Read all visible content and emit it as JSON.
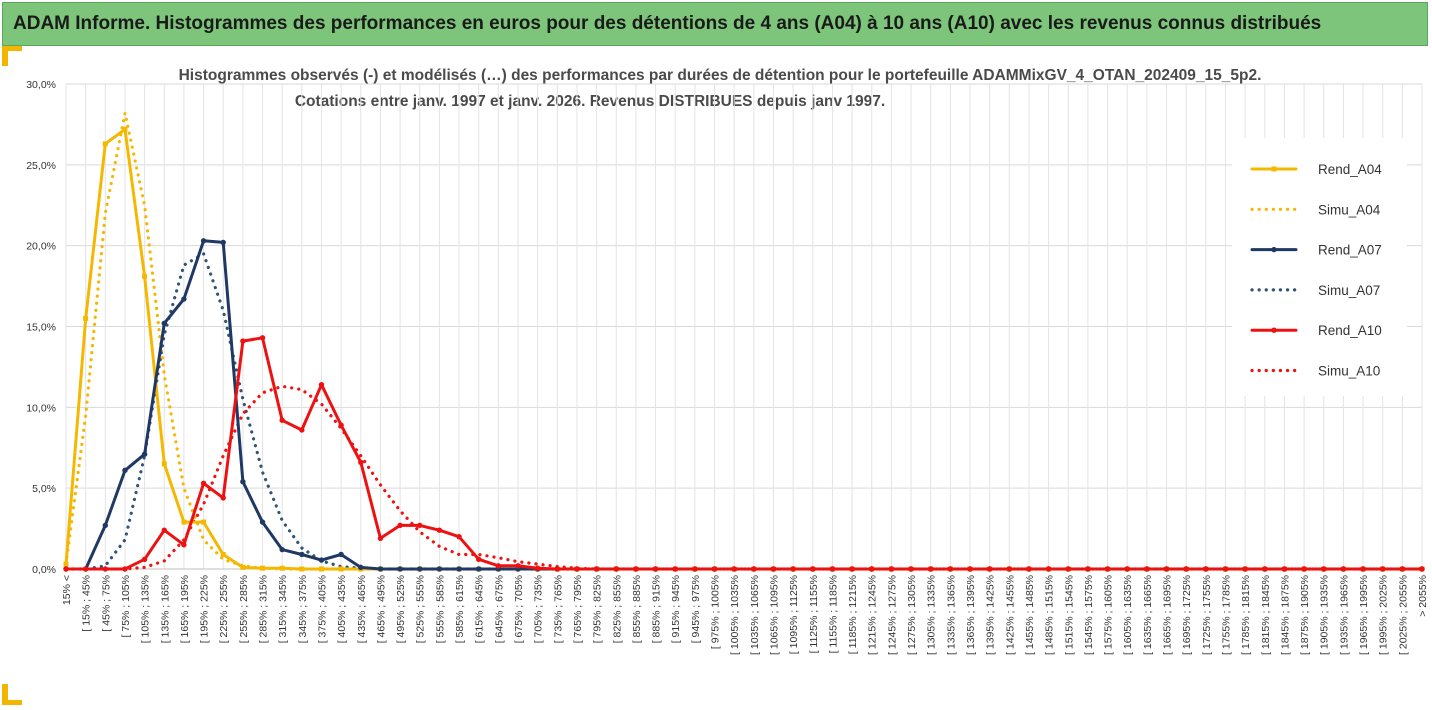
{
  "banner": {
    "title": "ADAM Informe. Histogrammes des performances en euros pour des détentions de 4 ans (A04) à 10 ans (A10) avec les revenus connus distribués"
  },
  "colors": {
    "banner_bg": "#7dc57a",
    "accent": "#f2b600",
    "A04": "#f5b800",
    "A07": "#1f3864",
    "A07_simu": "#2e5478",
    "A10": "#ee1111"
  },
  "chart_data": {
    "type": "line",
    "title_line1": "Histogrammes observés (-) et modélisés (…) des performances par durées de détention pour le portefeuille ADAMMixGV_4_OTAN_202409_15_5p2.",
    "title_line2": "Cotations entre janv. 1997 et janv. 2026. Revenus DISTRIBUES depuis janv 1997.",
    "y_ticks": [
      "0,0%",
      "5,0%",
      "10,0%",
      "15,0%",
      "20,0%",
      "25,0%",
      "30,0%"
    ],
    "ylim": [
      0,
      30
    ],
    "grid": true,
    "legend_position": "right",
    "categories": [
      "15% <",
      "[ 15% ; 45%",
      "[ 45% ; 75%",
      "[ 75% ; 105%",
      "[ 105% ; 135%",
      "[ 135% ; 165%",
      "[ 165% ; 195%",
      "[ 195% ; 225%",
      "[ 225% ; 255%",
      "[ 255% ; 285%",
      "[ 285% ; 315%",
      "[ 315% ; 345%",
      "[ 345% ; 375%",
      "[ 375% ; 405%",
      "[ 405% ; 435%",
      "[ 435% ; 465%",
      "[ 465% ; 495%",
      "[ 495% ; 525%",
      "[ 525% ; 555%",
      "[ 555% ; 585%",
      "[ 585% ; 615%",
      "[ 615% ; 645%",
      "[ 645% ; 675%",
      "[ 675% ; 705%",
      "[ 705% ; 735%",
      "[ 735% ; 765%",
      "[ 765% ; 795%",
      "[ 795% ; 825%",
      "[ 825% ; 855%",
      "[ 855% ; 885%",
      "[ 885% ; 915%",
      "[ 915% ; 945%",
      "[ 945% ; 975%",
      "[ 975% ; 1005%",
      "[ 1005% ; 1035%",
      "[ 1035% ; 1065%",
      "[ 1065% ; 1095%",
      "[ 1095% ; 1125%",
      "[ 1125% ; 1155%",
      "[ 1155% ; 1185%",
      "[ 1185% ; 1215%",
      "[ 1215% ; 1245%",
      "[ 1245% ; 1275%",
      "[ 1275% ; 1305%",
      "[ 1305% ; 1335%",
      "[ 1335% ; 1365%",
      "[ 1365% ; 1395%",
      "[ 1395% ; 1425%",
      "[ 1425% ; 1455%",
      "[ 1455% ; 1485%",
      "[ 1485% ; 1515%",
      "[ 1515% ; 1545%",
      "[ 1545% ; 1575%",
      "[ 1575% ; 1605%",
      "[ 1605% ; 1635%",
      "[ 1635% ; 1665%",
      "[ 1665% ; 1695%",
      "[ 1695% ; 1725%",
      "[ 1725% ; 1755%",
      "[ 1755% ; 1785%",
      "[ 1785% ; 1815%",
      "[ 1815% ; 1845%",
      "[ 1845% ; 1875%",
      "[ 1875% ; 1905%",
      "[ 1905% ; 1935%",
      "[ 1935% ; 1965%",
      "[ 1965% ; 1995%",
      "[ 1995% ; 2025%",
      "[ 2025% ; 2055%",
      "> 2055%"
    ],
    "series": [
      {
        "name": "Rend_A04",
        "style": "solid",
        "marker": "square",
        "color": "#f5b800",
        "values": [
          0.3,
          15.5,
          26.3,
          27.2,
          18.1,
          6.5,
          2.9,
          2.9,
          0.9,
          0.1,
          0.05,
          0.05,
          0,
          0,
          0,
          0,
          0,
          0,
          0,
          0,
          0,
          0,
          0,
          0,
          0,
          0,
          0,
          0,
          0,
          0,
          0,
          0,
          0,
          0,
          0,
          0,
          0,
          0,
          0,
          0,
          0,
          0,
          0,
          0,
          0,
          0,
          0,
          0,
          0,
          0,
          0,
          0,
          0,
          0,
          0,
          0,
          0,
          0,
          0,
          0,
          0,
          0,
          0,
          0,
          0,
          0,
          0,
          0,
          0,
          0
        ]
      },
      {
        "name": "Simu_A04",
        "style": "dotted",
        "color": "#f5b800",
        "values": [
          0.3,
          9.5,
          22.0,
          28.2,
          22.5,
          12.0,
          5.0,
          1.8,
          0.6,
          0.2,
          0.05,
          0,
          0,
          0,
          0,
          0,
          0,
          0,
          0,
          0,
          0,
          0,
          0,
          0,
          0,
          0,
          0,
          0,
          0,
          0,
          0,
          0,
          0,
          0,
          0,
          0,
          0,
          0,
          0,
          0,
          0,
          0,
          0,
          0,
          0,
          0,
          0,
          0,
          0,
          0,
          0,
          0,
          0,
          0,
          0,
          0,
          0,
          0,
          0,
          0,
          0,
          0,
          0,
          0,
          0,
          0,
          0,
          0,
          0,
          0
        ]
      },
      {
        "name": "Rend_A07",
        "style": "solid",
        "marker": "circle",
        "color": "#1f3864",
        "values": [
          0,
          0,
          2.7,
          6.1,
          7.1,
          15.2,
          16.7,
          20.3,
          20.2,
          5.4,
          2.9,
          1.2,
          0.9,
          0.55,
          0.9,
          0.1,
          0,
          0,
          0,
          0,
          0,
          0,
          0,
          0,
          0,
          0,
          0,
          0,
          0,
          0,
          0,
          0,
          0,
          0,
          0,
          0,
          0,
          0,
          0,
          0,
          0,
          0,
          0,
          0,
          0,
          0,
          0,
          0,
          0,
          0,
          0,
          0,
          0,
          0,
          0,
          0,
          0,
          0,
          0,
          0,
          0,
          0,
          0,
          0,
          0,
          0,
          0,
          0,
          0,
          0
        ]
      },
      {
        "name": "Simu_A07",
        "style": "dotted",
        "color": "#2e5478",
        "values": [
          0,
          0,
          0.2,
          1.8,
          7.0,
          14.5,
          18.8,
          19.5,
          16.0,
          10.5,
          6.0,
          3.0,
          1.3,
          0.5,
          0.15,
          0.05,
          0,
          0,
          0,
          0,
          0,
          0,
          0,
          0,
          0,
          0,
          0,
          0,
          0,
          0,
          0,
          0,
          0,
          0,
          0,
          0,
          0,
          0,
          0,
          0,
          0,
          0,
          0,
          0,
          0,
          0,
          0,
          0,
          0,
          0,
          0,
          0,
          0,
          0,
          0,
          0,
          0,
          0,
          0,
          0,
          0,
          0,
          0,
          0,
          0,
          0,
          0,
          0,
          0,
          0
        ]
      },
      {
        "name": "Rend_A10",
        "style": "solid",
        "marker": "circle",
        "color": "#ee1111",
        "values": [
          0,
          0,
          0,
          0,
          0.6,
          2.4,
          1.5,
          5.3,
          4.4,
          14.1,
          14.3,
          9.2,
          8.6,
          11.4,
          8.9,
          6.6,
          1.9,
          2.7,
          2.7,
          2.4,
          2.0,
          0.6,
          0.2,
          0.2,
          0.05,
          0,
          0,
          0,
          0,
          0,
          0,
          0,
          0,
          0,
          0,
          0,
          0,
          0,
          0,
          0,
          0,
          0,
          0,
          0,
          0,
          0,
          0,
          0,
          0,
          0,
          0,
          0,
          0,
          0,
          0,
          0,
          0,
          0,
          0,
          0,
          0,
          0,
          0,
          0,
          0,
          0,
          0,
          0,
          0,
          0
        ]
      },
      {
        "name": "Simu_A10",
        "style": "dotted",
        "color": "#ee1111",
        "values": [
          0,
          0,
          0,
          0,
          0.1,
          0.5,
          1.8,
          4.0,
          7.0,
          9.6,
          10.9,
          11.3,
          11.1,
          10.2,
          8.7,
          7.0,
          5.2,
          3.6,
          2.3,
          1.4,
          0.9,
          0.9,
          0.7,
          0.45,
          0.3,
          0.15,
          0.05,
          0,
          0,
          0,
          0,
          0,
          0,
          0,
          0,
          0,
          0,
          0,
          0,
          0,
          0,
          0,
          0,
          0,
          0,
          0,
          0,
          0,
          0,
          0,
          0,
          0,
          0,
          0,
          0,
          0,
          0,
          0,
          0,
          0,
          0,
          0,
          0,
          0,
          0,
          0,
          0,
          0,
          0,
          0
        ]
      }
    ]
  }
}
